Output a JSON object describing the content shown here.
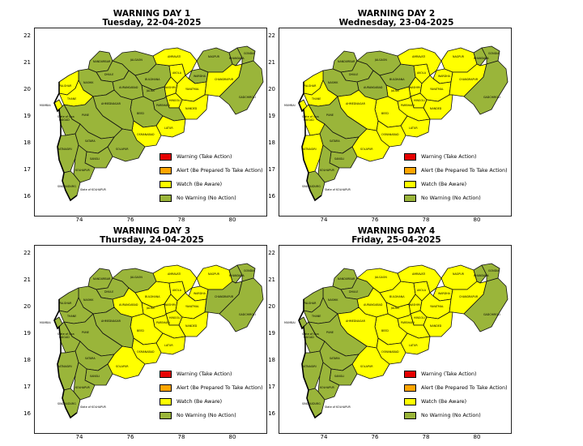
{
  "panels": [
    {
      "title": "WARNING DAY 1",
      "date": "Tuesday, 22-04-2025"
    },
    {
      "title": "WARNING DAY 2",
      "date": "Wednesday, 23-04-2025"
    },
    {
      "title": "WARNING DAY 3",
      "date": "Thursday, 24-04-2025"
    },
    {
      "title": "WARNING DAY 4",
      "date": "Friday, 25-04-2025"
    }
  ],
  "axes": {
    "lat_ticks": [
      "22",
      "21",
      "20",
      "19",
      "18",
      "17",
      "16"
    ],
    "lon_ticks": [
      "74",
      "76",
      "78",
      "80"
    ]
  },
  "legend": [
    {
      "label": "Warning (Take Action)",
      "color": "#e60000"
    },
    {
      "label": "Alert (Be Prepared To Take Action)",
      "color": "#ffa500"
    },
    {
      "label": "Watch (Be Aware)",
      "color": "#ffff00"
    },
    {
      "label": "No Warning (No Action)",
      "color": "#9ab53a"
    }
  ],
  "district_labels": [
    "DHULE",
    "JALGAON",
    "NANDURBAR",
    "AMRAVATI",
    "NAGPUR",
    "GONDIA",
    "BHANDARA",
    "WARDHA",
    "BULDHANA",
    "AKOLA",
    "WASHIM",
    "YAVATMAL",
    "CHANDRAPUR",
    "GADCHIROLI",
    "NASHIK",
    "AURANGABAD",
    "JALNA",
    "HINGOLI",
    "NANDED",
    "PARBHANI",
    "BEED",
    "LATUR",
    "OSMANABAD",
    "AHMEDNAGAR",
    "PUNE",
    "SATARA",
    "SANGLI",
    "SOLAPUR",
    "RAIGAD",
    "THANE",
    "PALGHAR",
    "MUMBAI",
    "RATNAGIRI",
    "SINDHUDURG",
    "KOLHAPUR"
  ],
  "map_notes": [
    "State of Goa",
    "State of KOLHAPUR"
  ],
  "status_colors": {
    "watch": "#ffff00",
    "none": "#9ab53a"
  },
  "watch_districts": [
    [
      "AMRAVATI",
      "AKOLA",
      "HINGOLI",
      "NANDED",
      "YAVATMAL",
      "WASHIM",
      "LATUR",
      "OSMANABAD",
      "CHANDRAPUR",
      "PALGHAR",
      "THANE",
      "MUMBAI"
    ],
    [
      "NAGPUR",
      "WARDHA",
      "AMRAVATI",
      "AKOLA",
      "CHANDRAPUR",
      "JALNA",
      "BEED",
      "PARBHANI",
      "HINGOLI",
      "NANDED",
      "LATUR",
      "OSMANABAD",
      "YAVATMAL",
      "SOLAPUR",
      "AHMEDNAGAR",
      "WASHIM",
      "PALGHAR",
      "THANE",
      "MUMBAI",
      "RAIGAD",
      "RATNAGIRI"
    ],
    [
      "NAGPUR",
      "WARDHA",
      "AMRAVATI",
      "AKOLA",
      "BULDHANA",
      "JALNA",
      "BEED",
      "PARBHANI",
      "HINGOLI",
      "NANDED",
      "LATUR",
      "OSMANABAD",
      "YAVATMAL",
      "SOLAPUR",
      "WASHIM",
      "AURANGABAD"
    ],
    [
      "NAGPUR",
      "WARDHA",
      "AMRAVATI",
      "AKOLA",
      "BULDHANA",
      "JALGAON",
      "JALNA",
      "BEED",
      "PARBHANI",
      "HINGOLI",
      "NANDED",
      "LATUR",
      "OSMANABAD",
      "YAVATMAL",
      "SOLAPUR",
      "WASHIM",
      "AURANGABAD",
      "AHMEDNAGAR",
      "CHANDRAPUR"
    ]
  ]
}
